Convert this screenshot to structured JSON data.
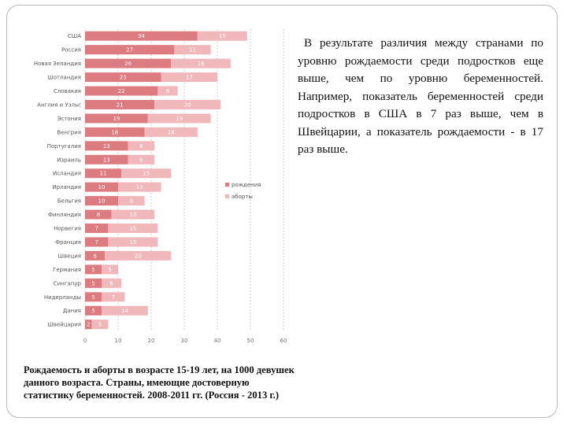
{
  "side_text": "В результате различия между странами по уровню рождаемости среди подростков еще выше, чем по уровню беременностей. Например, показатель беременностей среди подростков в США в 7 раз выше, чем в Швейцарии, а показатель рождаемости - в 17 раз выше.",
  "caption": "Рождаемость и аборты в возрасте 15-19 лет, на 1000 девушек данного возраста. Страны, имеющие достоверную статистику беременностей. 2008-2011 гг. (Россия - 2013 г.)",
  "colors": {
    "births": "#dc7c80",
    "abortions": "#f0b8bb",
    "label": "#ffffff",
    "axis_text": "#777777",
    "category_text": "#555555",
    "grid": "#cfcfcf"
  },
  "chart_data": {
    "type": "bar",
    "orientation": "horizontal",
    "stacked": true,
    "categories": [
      "США",
      "Россия",
      "Новая Зеландия",
      "Шотландия",
      "Словакия",
      "Англия и Уэльс",
      "Эстония",
      "Венгрия",
      "Португалия",
      "Израиль",
      "Исландия",
      "Ирландия",
      "Бельгия",
      "Финляндия",
      "Норвегия",
      "Франция",
      "Швеция",
      "Германия",
      "Сингапур",
      "Нидерланды",
      "Дания",
      "Швейцария"
    ],
    "series": [
      {
        "name": "рождения",
        "values": [
          34,
          27,
          26,
          23,
          22,
          21,
          19,
          18,
          13,
          13,
          11,
          10,
          10,
          8,
          7,
          7,
          6,
          5,
          5,
          5,
          5,
          2
        ]
      },
      {
        "name": "аборты",
        "values": [
          15,
          11,
          18,
          17,
          6,
          20,
          19,
          16,
          8,
          8,
          15,
          13,
          8,
          13,
          15,
          15,
          20,
          5,
          6,
          7,
          14,
          5
        ]
      }
    ],
    "xlim": [
      0,
      60
    ],
    "xticks": [
      0,
      10,
      20,
      30,
      40,
      50,
      60
    ],
    "grid": true,
    "legend": [
      "рождения",
      "аборты"
    ],
    "legend_position": "right-middle"
  }
}
